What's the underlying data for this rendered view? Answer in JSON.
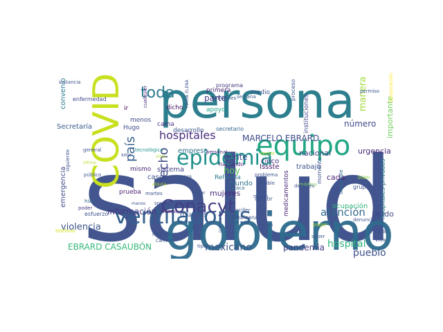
{
  "words": [
    {
      "text": "salud",
      "color": "#3b4f8a"
    },
    {
      "text": "persona",
      "color": "#2d7f8e"
    },
    {
      "text": "gobierno",
      "color": "#2f6c8e"
    },
    {
      "text": "COVID",
      "color": "#c8e020"
    },
    {
      "text": "equipo",
      "color": "#22a784"
    },
    {
      "text": "epidemia",
      "color": "#21918c"
    },
    {
      "text": "ventiladores",
      "color": "#34608d"
    },
    {
      "text": "Conacyt",
      "color": "#423f85"
    },
    {
      "text": "toda",
      "color": "#2a788e"
    },
    {
      "text": "país",
      "color": "#355f8d"
    },
    {
      "text": "hecho",
      "color": "#3e4c8a"
    },
    {
      "text": "hospitales",
      "color": "#472d7b"
    },
    {
      "text": "MARCELO EBRARD",
      "color": "#3f4a8a"
    },
    {
      "text": "atención",
      "color": "#31688e"
    },
    {
      "text": "hospital",
      "color": "#2db27d"
    },
    {
      "text": "pueblo",
      "color": "#3d4e8a"
    },
    {
      "text": "mexicano",
      "color": "#3a548c"
    },
    {
      "text": "pandemia",
      "color": "#433e85"
    },
    {
      "text": "violencia",
      "color": "#3b528b"
    },
    {
      "text": "información",
      "color": "#453882"
    },
    {
      "text": "EBRARD CASAUBÓN",
      "color": "#35b779"
    },
    {
      "text": "parte",
      "color": "#443983"
    },
    {
      "text": "gente",
      "color": "#3f4788"
    },
    {
      "text": "hoy",
      "color": "#5ec962"
    },
    {
      "text": "mujeres",
      "color": "#472a7a"
    },
    {
      "text": "número",
      "color": "#3e4989"
    },
    {
      "text": "manera",
      "color": "#a0da39"
    },
    {
      "text": "importante",
      "color": "#6ece58"
    },
    {
      "text": "nacional",
      "color": "#404688"
    },
    {
      "text": "trabajo",
      "color": "#3b528b"
    },
    {
      "text": "urgencia",
      "color": "#482878"
    },
    {
      "text": "cada",
      "color": "#481f70"
    },
    {
      "text": "Unido",
      "color": "#3e4a89"
    },
    {
      "text": "ocupación",
      "color": "#2eb37c"
    },
    {
      "text": "Secretaría",
      "color": "#38598c"
    },
    {
      "text": "convenio",
      "color": "#29798e"
    },
    {
      "text": "emergencia",
      "color": "#3e4c8a"
    },
    {
      "text": "hospitales privados",
      "color": "#287c8e"
    },
    {
      "text": "sistema",
      "color": "#433d84"
    },
    {
      "text": "casos",
      "color": "#3b518b"
    },
    {
      "text": "mundo",
      "color": "#2c728e"
    },
    {
      "text": "muchas",
      "color": "#3b528b"
    },
    {
      "text": "Issste",
      "color": "#481467"
    },
    {
      "text": "cinco",
      "color": "#46327e"
    },
    {
      "text": "medicamentos",
      "color": "#482475"
    },
    {
      "text": "instituciones",
      "color": "#3f4788"
    },
    {
      "text": "Reforma",
      "color": "#2a778e"
    },
    {
      "text": "empresa",
      "color": "#2e6f8e"
    },
    {
      "text": "Hugo",
      "color": "#3d4d8a"
    },
    {
      "text": "menos",
      "color": "#3e4a89"
    },
    {
      "text": "apoyo",
      "color": "#20a386"
    },
    {
      "text": "cama",
      "color": "#46307e"
    },
    {
      "text": "desarrollo",
      "color": "#3b528b"
    },
    {
      "text": "secretario",
      "color": "#31678e"
    },
    {
      "text": "mismo",
      "color": "#482173"
    },
    {
      "text": "prueba",
      "color": "#481c6e"
    },
    {
      "text": "haciendo",
      "color": "#482576"
    },
    {
      "text": "dicho",
      "color": "#471365"
    },
    {
      "text": "primera",
      "color": "#482475"
    },
    {
      "text": "medio",
      "color": "#3b528b"
    },
    {
      "text": "programa",
      "color": "#443a83"
    },
    {
      "text": "semana",
      "color": "#38588c"
    },
    {
      "text": "proceso",
      "color": "#3b528b"
    },
    {
      "text": "ir",
      "color": "#440154"
    },
    {
      "text": "enfermedad",
      "color": "#3f4788"
    },
    {
      "text": "instancia",
      "color": "#3b528b"
    },
    {
      "text": "permiso",
      "color": "#39568c"
    },
    {
      "text": "Corporación",
      "color": "#fde725"
    },
    {
      "text": "tecnológica",
      "color": "#21918c"
    },
    {
      "text": "general",
      "color": "#3b528b"
    },
    {
      "text": "público",
      "color": "#3b528b"
    },
    {
      "text": "siguiente",
      "color": "#3b528b"
    },
    {
      "text": "hizo",
      "color": "#31688e"
    },
    {
      "text": "poder",
      "color": "#443983"
    },
    {
      "text": "martes",
      "color": "#3b528b"
    },
    {
      "text": "social",
      "color": "#3e4a89"
    },
    {
      "text": "tiempo",
      "color": "#482173"
    },
    {
      "text": "cualquier",
      "color": "#482878"
    },
    {
      "text": "MARÍA ELENA",
      "color": "#3b528b"
    },
    {
      "text": "millones",
      "color": "#3b528b"
    },
    {
      "text": "personal",
      "color": "#482878"
    },
    {
      "text": "sector",
      "color": "#b5de2b"
    },
    {
      "text": "problema",
      "color": "#3b528b"
    },
    {
      "text": "posible",
      "color": "#3b528b"
    },
    {
      "text": "julio",
      "color": "#3b528b"
    },
    {
      "text": "médico",
      "color": "#7ad151"
    },
    {
      "text": "después",
      "color": "#3b528b"
    },
    {
      "text": "disponible",
      "color": "#31688e"
    },
    {
      "text": "bien",
      "color": "#8fd744"
    },
    {
      "text": "denuncia",
      "color": "#3b528b"
    },
    {
      "text": "grupo",
      "color": "#3e4a89"
    },
    {
      "text": "vida",
      "color": "#3b528b"
    },
    {
      "text": "sido",
      "color": "#3b528b"
    },
    {
      "text": "saber",
      "color": "#3b528b"
    },
    {
      "text": "pagar",
      "color": "#addc30"
    },
    {
      "text": "canciller",
      "color": "#3b528b"
    },
    {
      "text": "Mexicana",
      "color": "#3b528b"
    },
    {
      "text": "doctor",
      "color": "#3b528b"
    },
    {
      "text": "millón",
      "color": "#3b528b"
    },
    {
      "text": "Oaxaca",
      "color": "#31688e"
    },
    {
      "text": "justicia",
      "color": "#3b528b"
    },
    {
      "text": "gran",
      "color": "#3b528b"
    },
    {
      "text": "tipo",
      "color": "#3b528b"
    },
    {
      "text": "dar",
      "color": "#3b528b"
    },
    {
      "text": "vemos",
      "color": "#3b528b"
    },
    {
      "text": "alguna",
      "color": "#b5de2b"
    },
    {
      "text": "esfuerzo",
      "color": "#3b528b"
    },
    {
      "text": "hicimos",
      "color": "#3b528b"
    },
    {
      "text": "momento",
      "color": "#3b528b"
    },
    {
      "text": "teléfono",
      "color": "#d2e21b"
    },
    {
      "text": "vista",
      "color": "#b5de2b"
    },
    {
      "text": "último",
      "color": "#b5de2b"
    },
    {
      "text": "manos",
      "color": "#3b528b"
    },
    {
      "text": "cosa",
      "color": "#3b528b"
    },
    {
      "text": "Carmen",
      "color": "#3b528b"
    },
    {
      "text": "solo",
      "color": "#3b528b"
    }
  ]
}
